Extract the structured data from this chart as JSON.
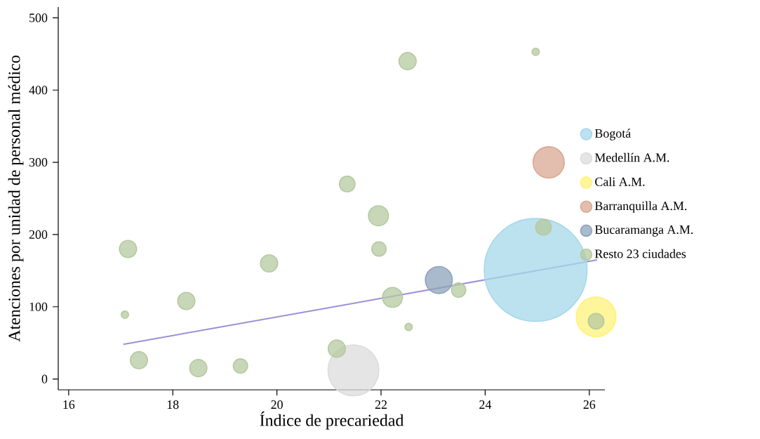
{
  "chart_data": {
    "type": "bubble",
    "xlabel": "Índice de precariedad",
    "ylabel": "Atenciones por unidad de personal médico",
    "xlim": [
      15.8,
      26.3
    ],
    "ylim": [
      -15,
      515
    ],
    "xticks": [
      16,
      18,
      20,
      22,
      24,
      26
    ],
    "yticks": [
      0,
      100,
      200,
      300,
      400,
      500
    ],
    "legend": "right",
    "grid": false,
    "series": [
      {
        "name": "Bogotá",
        "color": "#a6d8ea",
        "x": [
          24.97
        ],
        "values": [
          151
        ],
        "sizes": [
          1
        ]
      },
      {
        "name": "Medellín A.M.",
        "color": "#dcdcdc",
        "x": [
          21.47
        ],
        "values": [
          12
        ],
        "sizes": [
          0.25
        ]
      },
      {
        "name": "Cali A.M.",
        "color": "#fff27a",
        "x": [
          26.13
        ],
        "values": [
          86
        ],
        "sizes": [
          0.154
        ]
      },
      {
        "name": "Barranquilla A.M.",
        "color": "#d9a894",
        "x": [
          25.22
        ],
        "values": [
          300
        ],
        "sizes": [
          0.097
        ]
      },
      {
        "name": "Bucaramanga A.M.",
        "color": "#8ea3bc",
        "x": [
          23.11
        ],
        "values": [
          137
        ],
        "sizes": [
          0.073
        ]
      },
      {
        "name": "Resto 23 ciudades",
        "color": "#b5c9a0",
        "x": [
          17.14,
          17.08,
          17.35,
          18.26,
          18.49,
          19.3,
          19.85,
          21.15,
          21.35,
          21.95,
          21.96,
          22.22,
          22.51,
          22.53,
          23.49,
          24.97,
          25.12,
          26.13
        ],
        "values": [
          180,
          89,
          26,
          108,
          15,
          18,
          160,
          42,
          270,
          226,
          180,
          113,
          440,
          72,
          123,
          453,
          210,
          80
        ],
        "sizes": [
          0.031,
          0.0066,
          0.031,
          0.031,
          0.031,
          0.022,
          0.031,
          0.031,
          0.026,
          0.041,
          0.022,
          0.041,
          0.031,
          0.0066,
          0.022,
          0.0066,
          0.026,
          0.026
        ]
      },
      {
        "type": "line",
        "color": "#9b8fd8",
        "x": [
          17.05,
          26.15
        ],
        "values": [
          48,
          165
        ]
      }
    ]
  }
}
